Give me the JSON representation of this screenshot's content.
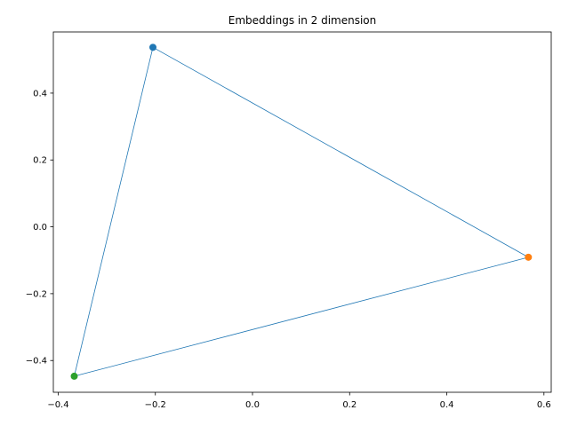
{
  "chart_data": {
    "type": "scatter",
    "title": "Embeddings in 2 dimension",
    "xlabel": "",
    "ylabel": "",
    "xlim": [
      -0.41,
      0.615
    ],
    "ylim": [
      -0.495,
      0.583
    ],
    "grid": false,
    "x_ticks": [
      -0.4,
      -0.2,
      0.0,
      0.2,
      0.4,
      0.6
    ],
    "x_tick_labels": [
      "−0.4",
      "−0.2",
      "0.0",
      "0.2",
      "0.4",
      "0.6"
    ],
    "y_ticks": [
      -0.4,
      -0.2,
      0.0,
      0.2,
      0.4
    ],
    "y_tick_labels": [
      "−0.4",
      "−0.2",
      "0.0",
      "0.2",
      "0.4"
    ],
    "points": [
      {
        "x": -0.205,
        "y": 0.537,
        "color": "#1f77b4"
      },
      {
        "x": 0.568,
        "y": -0.091,
        "color": "#ff7f0e"
      },
      {
        "x": -0.367,
        "y": -0.447,
        "color": "#2ca02c"
      }
    ],
    "edges": [
      [
        0,
        1
      ],
      [
        1,
        2
      ],
      [
        2,
        0
      ]
    ],
    "line_color": "#1f77b4"
  }
}
